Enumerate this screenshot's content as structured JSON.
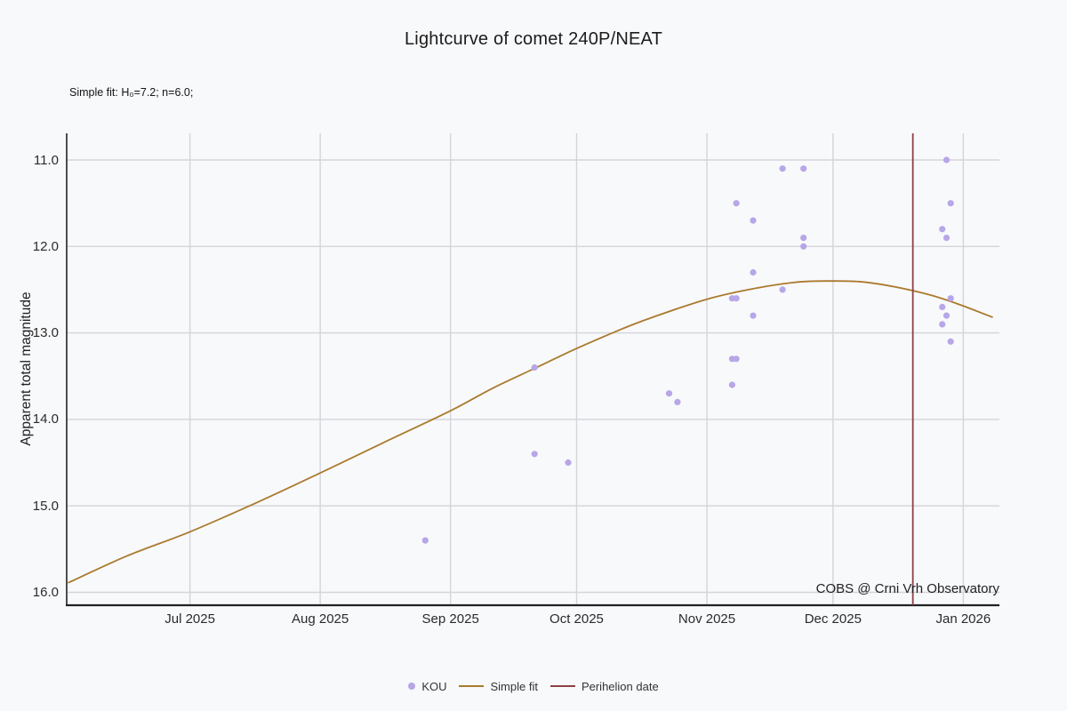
{
  "annotations": {
    "fit_params": "Simple fit: H₀=7.2; n=6.0;",
    "watermark": "COBS @ Crni Vrh Observatory"
  },
  "chart_data": {
    "type": "scatter",
    "title": "Lightcurve of comet 240P/NEAT",
    "xlabel": "",
    "ylabel": "Apparent total magnitude",
    "grid": true,
    "legend_position": "bottom-center",
    "y_axis": {
      "inverted": true,
      "range": [
        10.69,
        16.14
      ],
      "ticks": [
        {
          "label": "11.0",
          "value": 11.0
        },
        {
          "label": "12.0",
          "value": 12.0
        },
        {
          "label": "13.0",
          "value": 13.0
        },
        {
          "label": "14.0",
          "value": 14.0
        },
        {
          "label": "15.0",
          "value": 15.0
        },
        {
          "label": "16.0",
          "value": 16.0
        }
      ]
    },
    "x_axis": {
      "range": [
        "2025-06-02",
        "2026-01-10"
      ],
      "ticks": [
        {
          "label": "Jul 2025",
          "date": "2025-07-01"
        },
        {
          "label": "Aug 2025",
          "date": "2025-08-01"
        },
        {
          "label": "Sep 2025",
          "date": "2025-09-01"
        },
        {
          "label": "Oct 2025",
          "date": "2025-10-01"
        },
        {
          "label": "Nov 2025",
          "date": "2025-11-01"
        },
        {
          "label": "Dec 2025",
          "date": "2025-12-01"
        },
        {
          "label": "Jan 2026",
          "date": "2026-01-01"
        }
      ]
    },
    "series": [
      {
        "name": "KOU",
        "type": "scatter",
        "color": "#b7a6e8",
        "points": [
          {
            "date": "2025-08-26",
            "mag": 15.4
          },
          {
            "date": "2025-09-21",
            "mag": 13.4
          },
          {
            "date": "2025-09-21",
            "mag": 14.4
          },
          {
            "date": "2025-09-29",
            "mag": 14.5
          },
          {
            "date": "2025-10-23",
            "mag": 13.7
          },
          {
            "date": "2025-10-25",
            "mag": 13.8
          },
          {
            "date": "2025-11-07",
            "mag": 12.6
          },
          {
            "date": "2025-11-07",
            "mag": 13.3
          },
          {
            "date": "2025-11-07",
            "mag": 13.6
          },
          {
            "date": "2025-11-08",
            "mag": 11.5
          },
          {
            "date": "2025-11-08",
            "mag": 12.6
          },
          {
            "date": "2025-11-08",
            "mag": 13.3
          },
          {
            "date": "2025-11-12",
            "mag": 11.7
          },
          {
            "date": "2025-11-12",
            "mag": 12.3
          },
          {
            "date": "2025-11-12",
            "mag": 12.8
          },
          {
            "date": "2025-11-19",
            "mag": 11.1
          },
          {
            "date": "2025-11-19",
            "mag": 12.5
          },
          {
            "date": "2025-11-24",
            "mag": 11.1
          },
          {
            "date": "2025-11-24",
            "mag": 11.9
          },
          {
            "date": "2025-11-24",
            "mag": 12.0
          },
          {
            "date": "2025-12-27",
            "mag": 11.8
          },
          {
            "date": "2025-12-27",
            "mag": 12.7
          },
          {
            "date": "2025-12-27",
            "mag": 12.9
          },
          {
            "date": "2025-12-28",
            "mag": 11.0
          },
          {
            "date": "2025-12-28",
            "mag": 11.9
          },
          {
            "date": "2025-12-28",
            "mag": 12.8
          },
          {
            "date": "2025-12-29",
            "mag": 11.5
          },
          {
            "date": "2025-12-29",
            "mag": 12.6
          },
          {
            "date": "2025-12-29",
            "mag": 13.1
          }
        ]
      },
      {
        "name": "Simple fit",
        "type": "line",
        "color": "#ab7a2e",
        "points": [
          {
            "date": "2025-06-02",
            "mag": 15.89
          },
          {
            "date": "2025-06-16",
            "mag": 15.58
          },
          {
            "date": "2025-07-01",
            "mag": 15.3
          },
          {
            "date": "2025-07-17",
            "mag": 14.96
          },
          {
            "date": "2025-08-01",
            "mag": 14.62
          },
          {
            "date": "2025-08-16",
            "mag": 14.27
          },
          {
            "date": "2025-09-01",
            "mag": 13.9
          },
          {
            "date": "2025-09-11",
            "mag": 13.64
          },
          {
            "date": "2025-09-21",
            "mag": 13.41
          },
          {
            "date": "2025-10-01",
            "mag": 13.18
          },
          {
            "date": "2025-10-12",
            "mag": 12.95
          },
          {
            "date": "2025-10-19",
            "mag": 12.82
          },
          {
            "date": "2025-11-01",
            "mag": 12.61
          },
          {
            "date": "2025-11-13",
            "mag": 12.48
          },
          {
            "date": "2025-11-23",
            "mag": 12.41
          },
          {
            "date": "2025-12-01",
            "mag": 12.4
          },
          {
            "date": "2025-12-08",
            "mag": 12.41
          },
          {
            "date": "2025-12-16",
            "mag": 12.47
          },
          {
            "date": "2025-12-24",
            "mag": 12.56
          },
          {
            "date": "2025-12-31",
            "mag": 12.67
          },
          {
            "date": "2026-01-08",
            "mag": 12.82
          }
        ]
      },
      {
        "name": "Perihelion date",
        "type": "vline",
        "color": "#8e4045",
        "date": "2025-12-20"
      }
    ]
  }
}
